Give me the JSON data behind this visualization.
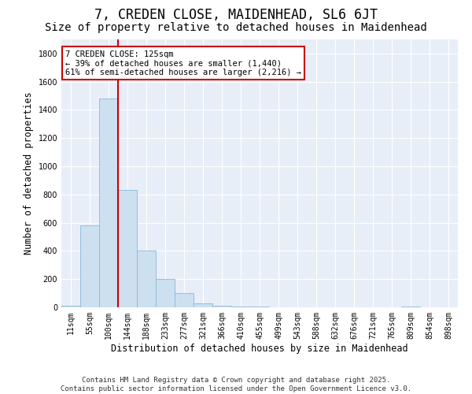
{
  "title": "7, CREDEN CLOSE, MAIDENHEAD, SL6 6JT",
  "subtitle": "Size of property relative to detached houses in Maidenhead",
  "xlabel": "Distribution of detached houses by size in Maidenhead",
  "ylabel": "Number of detached properties",
  "categories": [
    "11sqm",
    "55sqm",
    "100sqm",
    "144sqm",
    "188sqm",
    "233sqm",
    "277sqm",
    "321sqm",
    "366sqm",
    "410sqm",
    "455sqm",
    "499sqm",
    "543sqm",
    "588sqm",
    "632sqm",
    "676sqm",
    "721sqm",
    "765sqm",
    "809sqm",
    "854sqm",
    "898sqm"
  ],
  "values": [
    10,
    580,
    1480,
    830,
    405,
    200,
    100,
    30,
    10,
    5,
    5,
    0,
    0,
    0,
    0,
    0,
    0,
    0,
    5,
    0,
    0
  ],
  "bar_color": "#cce0f0",
  "bar_edge_color": "#8ab8d8",
  "vline_color": "#cc0000",
  "annotation_text": "7 CREDEN CLOSE: 125sqm\n← 39% of detached houses are smaller (1,440)\n61% of semi-detached houses are larger (2,216) →",
  "annotation_box_color": "white",
  "annotation_box_edge": "#cc0000",
  "ylim": [
    0,
    1900
  ],
  "yticks": [
    0,
    200,
    400,
    600,
    800,
    1000,
    1200,
    1400,
    1600,
    1800
  ],
  "background_color": "#e8eef8",
  "footer": "Contains HM Land Registry data © Crown copyright and database right 2025.\nContains public sector information licensed under the Open Government Licence v3.0.",
  "title_fontsize": 12,
  "subtitle_fontsize": 10,
  "label_fontsize": 8.5,
  "tick_fontsize": 7,
  "footer_fontsize": 6.5,
  "annot_fontsize": 7.5
}
